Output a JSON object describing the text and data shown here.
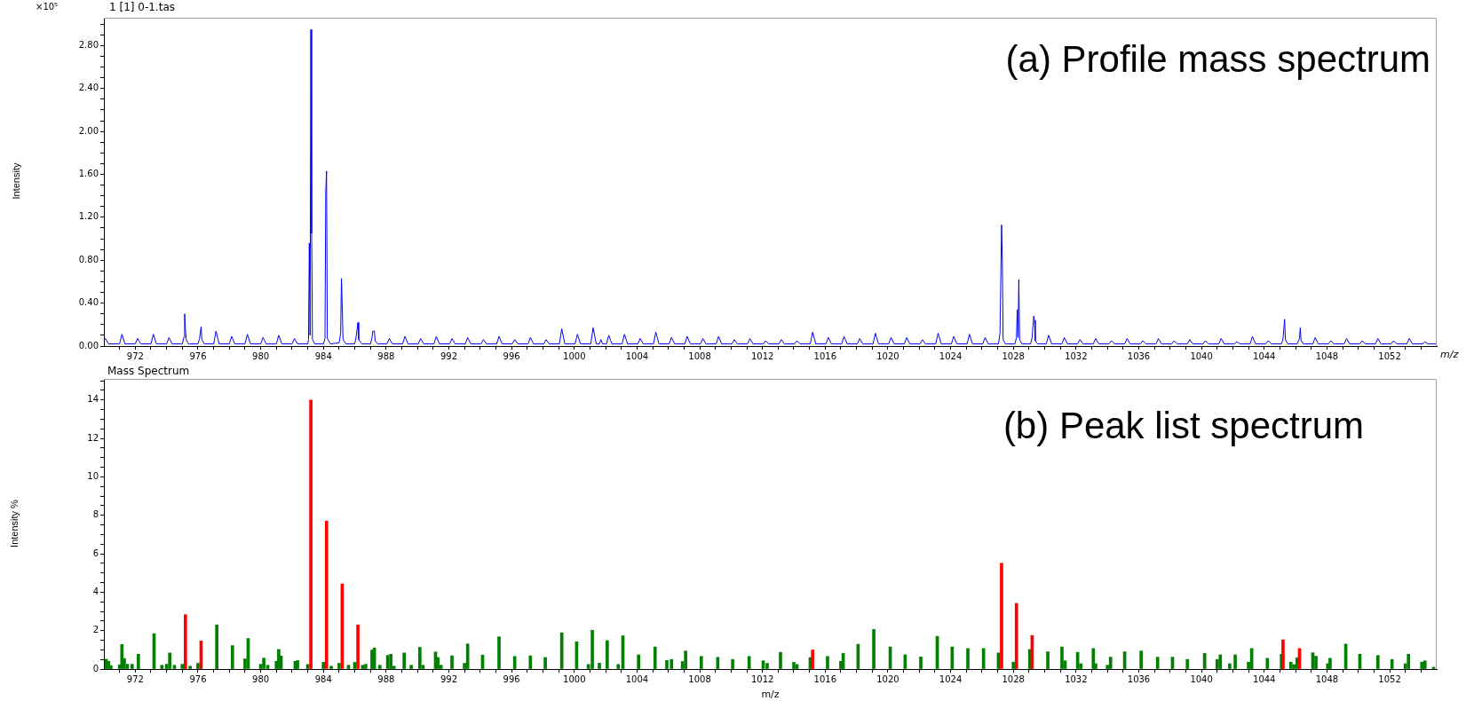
{
  "chart_data": [
    {
      "type": "line",
      "title": "(a) Profile mass spectrum",
      "subtitle": "1 [1] 0-1.tas",
      "xlabel": "m/z",
      "ylabel": "Intensity",
      "annotations": [
        "×10⁵"
      ],
      "marker": "none",
      "series": [
        {
          "color": "#0000ff",
          "x": [
            970.0,
            970.1,
            970.3,
            971.0,
            971.15,
            971.35,
            972.0,
            972.15,
            972.35,
            973.0,
            973.15,
            973.35,
            974.0,
            974.15,
            974.35,
            975.0,
            975.1,
            975.15,
            975.2,
            975.25,
            975.4,
            976.0,
            976.1,
            976.2,
            976.25,
            976.4,
            977.0,
            977.15,
            977.35,
            978.0,
            978.15,
            978.35,
            979.0,
            979.15,
            979.35,
            980.0,
            980.15,
            980.35,
            981.0,
            981.15,
            981.35,
            982.0,
            982.15,
            982.35,
            983.0,
            983.05,
            983.1,
            983.15,
            983.2,
            983.25,
            983.3,
            983.45,
            984.0,
            984.1,
            984.15,
            984.2,
            984.25,
            984.45,
            985.0,
            985.1,
            985.15,
            985.2,
            985.25,
            985.45,
            986.0,
            986.1,
            986.15,
            986.2,
            986.25,
            986.45,
            987.0,
            987.1,
            987.15,
            987.25,
            987.3,
            987.45,
            988.05,
            988.2,
            988.4,
            989.05,
            989.2,
            989.4,
            990.05,
            990.2,
            990.4,
            991.05,
            991.2,
            991.4,
            992.05,
            992.2,
            992.4,
            993.05,
            993.2,
            993.4,
            994.05,
            994.2,
            994.4,
            995.05,
            995.2,
            995.4,
            996.05,
            996.2,
            996.4,
            997.05,
            997.2,
            997.4,
            998.05,
            998.2,
            998.4,
            999.05,
            999.2,
            999.4,
            1000.05,
            1000.2,
            1000.4,
            1001.05,
            1001.2,
            1001.4,
            1001.6,
            1001.7,
            1001.8,
            1002.05,
            1002.2,
            1002.4,
            1003.05,
            1003.2,
            1003.4,
            1004.05,
            1004.2,
            1004.4,
            1005.05,
            1005.2,
            1005.4,
            1006.05,
            1006.2,
            1006.4,
            1007.05,
            1007.2,
            1007.4,
            1008.05,
            1008.2,
            1008.4,
            1009.05,
            1009.2,
            1009.4,
            1010.05,
            1010.2,
            1010.4,
            1011.05,
            1011.2,
            1011.4,
            1012.05,
            1012.2,
            1012.4,
            1013.05,
            1013.2,
            1013.4,
            1014.05,
            1014.2,
            1014.4,
            1015.05,
            1015.2,
            1015.4,
            1016.05,
            1016.2,
            1016.4,
            1017.05,
            1017.2,
            1017.4,
            1018.05,
            1018.2,
            1018.4,
            1019.05,
            1019.2,
            1019.4,
            1020.05,
            1020.2,
            1020.4,
            1021.05,
            1021.2,
            1021.4,
            1022.05,
            1022.2,
            1022.4,
            1023.05,
            1023.2,
            1023.4,
            1024.05,
            1024.2,
            1024.4,
            1025.05,
            1025.2,
            1025.4,
            1026.05,
            1026.2,
            1026.4,
            1027.05,
            1027.15,
            1027.25,
            1027.3,
            1027.35,
            1027.5,
            1028.1,
            1028.2,
            1028.25,
            1028.3,
            1028.35,
            1028.4,
            1028.55,
            1029.1,
            1029.2,
            1029.3,
            1029.35,
            1029.4,
            1029.55,
            1030.1,
            1030.25,
            1030.45,
            1031.1,
            1031.25,
            1031.45,
            1032.1,
            1032.25,
            1032.45,
            1033.1,
            1033.25,
            1033.45,
            1034.1,
            1034.25,
            1034.45,
            1035.1,
            1035.25,
            1035.45,
            1036.1,
            1036.25,
            1036.45,
            1037.1,
            1037.25,
            1037.45,
            1038.1,
            1038.25,
            1038.45,
            1039.1,
            1039.25,
            1039.45,
            1040.1,
            1040.25,
            1040.45,
            1041.1,
            1041.25,
            1041.45,
            1042.1,
            1042.25,
            1042.45,
            1043.1,
            1043.25,
            1043.45,
            1044.1,
            1044.25,
            1044.45,
            1045.1,
            1045.2,
            1045.3,
            1045.35,
            1045.5,
            1046.1,
            1046.25,
            1046.3,
            1046.35,
            1046.5,
            1047.1,
            1047.25,
            1047.45,
            1048.1,
            1048.25,
            1048.45,
            1049.1,
            1049.25,
            1049.45,
            1050.1,
            1050.25,
            1050.45,
            1051.1,
            1051.25,
            1051.45,
            1052.1,
            1052.25,
            1052.45,
            1053.1,
            1053.25,
            1053.45,
            1054.1,
            1054.25,
            1054.45,
            1055.0
          ],
          "values": [
            0.05,
            0.07,
            0.02,
            0.02,
            0.11,
            0.02,
            0.02,
            0.07,
            0.02,
            0.02,
            0.11,
            0.02,
            0.02,
            0.08,
            0.02,
            0.02,
            0.08,
            0.3,
            0.15,
            0.06,
            0.02,
            0.02,
            0.07,
            0.18,
            0.06,
            0.02,
            0.02,
            0.14,
            0.02,
            0.02,
            0.09,
            0.02,
            0.02,
            0.11,
            0.02,
            0.02,
            0.08,
            0.02,
            0.02,
            0.1,
            0.02,
            0.02,
            0.07,
            0.02,
            0.02,
            0.06,
            0.96,
            0.1,
            2.95,
            1.05,
            0.06,
            0.02,
            0.02,
            0.07,
            1.43,
            1.63,
            0.07,
            0.02,
            0.03,
            0.12,
            0.63,
            0.38,
            0.06,
            0.02,
            0.02,
            0.1,
            0.16,
            0.22,
            0.06,
            0.02,
            0.02,
            0.08,
            0.14,
            0.14,
            0.05,
            0.02,
            0.02,
            0.07,
            0.02,
            0.02,
            0.09,
            0.02,
            0.02,
            0.07,
            0.02,
            0.02,
            0.09,
            0.02,
            0.02,
            0.07,
            0.02,
            0.02,
            0.08,
            0.02,
            0.02,
            0.06,
            0.02,
            0.02,
            0.09,
            0.02,
            0.02,
            0.06,
            0.02,
            0.02,
            0.08,
            0.02,
            0.02,
            0.06,
            0.02,
            0.02,
            0.16,
            0.02,
            0.02,
            0.11,
            0.02,
            0.02,
            0.17,
            0.02,
            0.02,
            0.06,
            0.02,
            0.02,
            0.1,
            0.02,
            0.02,
            0.11,
            0.02,
            0.02,
            0.07,
            0.02,
            0.02,
            0.13,
            0.02,
            0.02,
            0.08,
            0.02,
            0.02,
            0.09,
            0.02,
            0.02,
            0.07,
            0.02,
            0.02,
            0.09,
            0.02,
            0.02,
            0.06,
            0.02,
            0.02,
            0.07,
            0.02,
            0.02,
            0.05,
            0.02,
            0.02,
            0.06,
            0.02,
            0.02,
            0.05,
            0.02,
            0.02,
            0.13,
            0.02,
            0.02,
            0.08,
            0.02,
            0.02,
            0.09,
            0.02,
            0.02,
            0.07,
            0.02,
            0.02,
            0.12,
            0.02,
            0.02,
            0.08,
            0.02,
            0.02,
            0.08,
            0.02,
            0.02,
            0.06,
            0.02,
            0.02,
            0.12,
            0.02,
            0.02,
            0.09,
            0.02,
            0.02,
            0.11,
            0.02,
            0.02,
            0.08,
            0.02,
            0.02,
            0.12,
            1.13,
            0.79,
            0.06,
            0.02,
            0.02,
            0.08,
            0.34,
            0.08,
            0.62,
            0.06,
            0.02,
            0.02,
            0.08,
            0.28,
            0.24,
            0.05,
            0.02,
            0.02,
            0.1,
            0.02,
            0.02,
            0.08,
            0.02,
            0.02,
            0.06,
            0.02,
            0.02,
            0.07,
            0.02,
            0.02,
            0.05,
            0.02,
            0.02,
            0.07,
            0.02,
            0.02,
            0.05,
            0.02,
            0.02,
            0.07,
            0.02,
            0.02,
            0.05,
            0.02,
            0.02,
            0.06,
            0.02,
            0.02,
            0.05,
            0.02,
            0.02,
            0.07,
            0.02,
            0.02,
            0.04,
            0.02,
            0.02,
            0.09,
            0.02,
            0.02,
            0.05,
            0.02,
            0.02,
            0.07,
            0.25,
            0.06,
            0.02,
            0.02,
            0.07,
            0.17,
            0.05,
            0.02,
            0.02,
            0.08,
            0.02,
            0.02,
            0.05,
            0.02,
            0.02,
            0.07,
            0.02,
            0.02,
            0.05,
            0.02,
            0.02,
            0.07,
            0.02,
            0.02,
            0.05,
            0.02,
            0.02,
            0.07,
            0.02,
            0.02,
            0.04,
            0.02,
            0.02
          ]
        }
      ],
      "xlim": [
        970,
        1055
      ],
      "xticks": [
        {
          "value": 971,
          "label": null
        },
        972,
        {
          "value": 973,
          "label": null
        },
        {
          "value": 974,
          "label": null
        },
        {
          "value": 975,
          "label": null
        },
        976,
        {
          "value": 977,
          "label": null
        },
        {
          "value": 978,
          "label": null
        },
        {
          "value": 979,
          "label": null
        },
        980,
        {
          "value": 981,
          "label": null
        },
        {
          "value": 982,
          "label": null
        },
        {
          "value": 983,
          "label": null
        },
        984,
        {
          "value": 985,
          "label": null
        },
        {
          "value": 986,
          "label": null
        },
        {
          "value": 987,
          "label": null
        },
        988,
        {
          "value": 989,
          "label": null
        },
        {
          "value": 990,
          "label": null
        },
        {
          "value": 991,
          "label": null
        },
        992,
        {
          "value": 993,
          "label": null
        },
        {
          "value": 994,
          "label": null
        },
        {
          "value": 995,
          "label": null
        },
        996,
        {
          "value": 997,
          "label": null
        },
        {
          "value": 998,
          "label": null
        },
        {
          "value": 999,
          "label": null
        },
        1000,
        {
          "value": 1001,
          "label": null
        },
        {
          "value": 1002,
          "label": null
        },
        {
          "value": 1003,
          "label": null
        },
        1004,
        {
          "value": 1005,
          "label": null
        },
        {
          "value": 1006,
          "label": null
        },
        {
          "value": 1007,
          "label": null
        },
        1008,
        {
          "value": 1009,
          "label": null
        },
        {
          "value": 1010,
          "label": null
        },
        {
          "value": 1011,
          "label": null
        },
        1012,
        {
          "value": 1013,
          "label": null
        },
        {
          "value": 1014,
          "label": null
        },
        {
          "value": 1015,
          "label": null
        },
        1016,
        {
          "value": 1017,
          "label": null
        },
        {
          "value": 1018,
          "label": null
        },
        {
          "value": 1019,
          "label": null
        },
        1020,
        {
          "value": 1021,
          "label": null
        },
        {
          "value": 1022,
          "label": null
        },
        {
          "value": 1023,
          "label": null
        },
        1024,
        {
          "value": 1025,
          "label": null
        },
        {
          "value": 1026,
          "label": null
        },
        {
          "value": 1027,
          "label": null
        },
        1028,
        {
          "value": 1029,
          "label": null
        },
        {
          "value": 1030,
          "label": null
        },
        {
          "value": 1031,
          "label": null
        },
        1032,
        {
          "value": 1033,
          "label": null
        },
        {
          "value": 1034,
          "label": null
        },
        {
          "value": 1035,
          "label": null
        },
        1036,
        {
          "value": 1037,
          "label": null
        },
        {
          "value": 1038,
          "label": null
        },
        {
          "value": 1039,
          "label": null
        },
        1040,
        {
          "value": 1041,
          "label": null
        },
        {
          "value": 1042,
          "label": null
        },
        {
          "value": 1043,
          "label": null
        },
        1044,
        {
          "value": 1045,
          "label": null
        },
        {
          "value": 1046,
          "label": null
        },
        {
          "value": 1047,
          "label": null
        },
        1048,
        {
          "value": 1049,
          "label": null
        },
        {
          "value": 1050,
          "label": null
        },
        {
          "value": 1051,
          "label": null
        },
        1052,
        {
          "value": 1053,
          "label": null
        },
        {
          "value": 1054,
          "label": null
        }
      ],
      "ylim": [
        0,
        3.06
      ],
      "yticks": [
        {
          "value": 0,
          "label": "0.00"
        },
        {
          "value": 0.1,
          "label": null
        },
        {
          "value": 0.2,
          "label": null
        },
        {
          "value": 0.3,
          "label": null
        },
        {
          "value": 0.4,
          "label": "0.40"
        },
        {
          "value": 0.5,
          "label": null
        },
        {
          "value": 0.6,
          "label": null
        },
        {
          "value": 0.7,
          "label": null
        },
        {
          "value": 0.8,
          "label": "0.80"
        },
        {
          "value": 0.9,
          "label": null
        },
        {
          "value": 1.0,
          "label": null
        },
        {
          "value": 1.1,
          "label": null
        },
        {
          "value": 1.2,
          "label": "1.20"
        },
        {
          "value": 1.3,
          "label": null
        },
        {
          "value": 1.4,
          "label": null
        },
        {
          "value": 1.5,
          "label": null
        },
        {
          "value": 1.6,
          "label": "1.60"
        },
        {
          "value": 1.7,
          "label": null
        },
        {
          "value": 1.8,
          "label": null
        },
        {
          "value": 1.9,
          "label": null
        },
        {
          "value": 2.0,
          "label": "2.00"
        },
        {
          "value": 2.1,
          "label": null
        },
        {
          "value": 2.2,
          "label": null
        },
        {
          "value": 2.3,
          "label": null
        },
        {
          "value": 2.4,
          "label": "2.40"
        },
        {
          "value": 2.5,
          "label": null
        },
        {
          "value": 2.6,
          "label": null
        },
        {
          "value": 2.7,
          "label": null
        },
        {
          "value": 2.8,
          "label": "2.80"
        },
        {
          "value": 2.9,
          "label": null
        },
        {
          "value": 3.0,
          "label": null
        }
      ]
    },
    {
      "type": "bar",
      "title": "(b) Peak list spectrum",
      "subtitle": "Mass Spectrum",
      "xlabel": "m/z",
      "ylabel": "Intensity %",
      "series": [
        {
          "color": "#ff0000",
          "x": [
            975.2,
            976.2,
            983.2,
            984.2,
            985.2,
            986.2,
            1015.2,
            1027.25,
            1028.2,
            1029.2,
            1045.2,
            1046.25
          ],
          "values": [
            2.83,
            1.46,
            14,
            7.7,
            4.43,
            2.3,
            0.99,
            5.51,
            3.42,
            1.75,
            1.52,
            1.07
          ]
        },
        {
          "color": "#008000",
          "x": [
            970.15,
            970.3,
            970.45,
            971.0,
            971.15,
            971.3,
            971.5,
            971.8,
            972.2,
            973.2,
            973.7,
            974.0,
            974.2,
            974.5,
            975.0,
            975.5,
            976.0,
            977.2,
            978.2,
            979.0,
            979.2,
            980.0,
            980.2,
            980.45,
            981.0,
            981.15,
            981.3,
            982.2,
            982.35,
            983.0,
            984.0,
            984.5,
            985.0,
            985.6,
            986.0,
            986.5,
            986.7,
            987.1,
            987.25,
            987.6,
            988.1,
            988.3,
            988.5,
            989.15,
            989.6,
            990.15,
            990.35,
            991.15,
            991.3,
            991.5,
            992.2,
            993.0,
            993.2,
            994.15,
            995.2,
            996.2,
            997.2,
            998.15,
            999.2,
            1000.15,
            1000.9,
            1001.15,
            1001.6,
            1002.1,
            1002.8,
            1003.1,
            1004.1,
            1005.15,
            1005.9,
            1006.2,
            1006.9,
            1007.1,
            1008.1,
            1009.15,
            1010.1,
            1011.15,
            1012.05,
            1012.3,
            1013.15,
            1014.0,
            1014.2,
            1015.05,
            1016.15,
            1017.0,
            1017.15,
            1018.1,
            1019.1,
            1020.15,
            1021.1,
            1022.1,
            1023.15,
            1024.1,
            1025.1,
            1026.1,
            1027.05,
            1028.0,
            1029.05,
            1030.2,
            1031.1,
            1031.3,
            1032.1,
            1032.3,
            1033.1,
            1033.25,
            1034.0,
            1034.2,
            1035.1,
            1036.15,
            1037.2,
            1038.15,
            1039.1,
            1040.2,
            1041.0,
            1041.2,
            1041.8,
            1042.15,
            1043.0,
            1043.2,
            1044.2,
            1045.1,
            1045.7,
            1045.9,
            1046.1,
            1047.1,
            1047.3,
            1048.05,
            1048.2,
            1049.2,
            1050.1,
            1051.25,
            1052.15,
            1053.0,
            1053.2,
            1054.05,
            1054.25,
            1054.8
          ],
          "values": [
            0.51,
            0.4,
            0.18,
            0.22,
            1.28,
            0.55,
            0.25,
            0.25,
            0.77,
            1.84,
            0.2,
            0.25,
            0.84,
            0.2,
            0.25,
            0.15,
            0.3,
            2.3,
            1.22,
            0.53,
            1.59,
            0.25,
            0.57,
            0.2,
            0.4,
            1.02,
            0.68,
            0.4,
            0.44,
            0.24,
            0.35,
            0.15,
            0.3,
            0.2,
            0.35,
            0.2,
            0.25,
            0.99,
            1.1,
            0.2,
            0.71,
            0.77,
            0.15,
            0.84,
            0.2,
            1.13,
            0.2,
            0.89,
            0.6,
            0.2,
            0.69,
            0.3,
            1.31,
            0.73,
            1.68,
            0.66,
            0.69,
            0.6,
            1.89,
            1.42,
            0.24,
            2.02,
            0.31,
            1.48,
            0.24,
            1.73,
            0.74,
            1.15,
            0.45,
            0.5,
            0.39,
            0.94,
            0.66,
            0.61,
            0.5,
            0.66,
            0.43,
            0.3,
            0.87,
            0.35,
            0.24,
            0.6,
            0.66,
            0.4,
            0.82,
            1.29,
            2.06,
            1.15,
            0.74,
            0.63,
            1.7,
            1.15,
            1.07,
            1.07,
            0.84,
            0.36,
            1.02,
            0.9,
            1.15,
            0.43,
            0.87,
            0.28,
            1.07,
            0.28,
            0.2,
            0.62,
            0.9,
            0.94,
            0.62,
            0.62,
            0.5,
            0.82,
            0.5,
            0.74,
            0.28,
            0.74,
            0.36,
            1.07,
            0.56,
            0.77,
            0.36,
            0.23,
            0.59,
            0.85,
            0.67,
            0.28,
            0.56,
            1.3,
            0.77,
            0.71,
            0.5,
            0.28,
            0.77,
            0.36,
            0.43,
            0.1
          ]
        }
      ],
      "xlim": [
        970,
        1055
      ],
      "xticks": [
        {
          "value": 971,
          "label": null
        },
        972,
        {
          "value": 973,
          "label": null
        },
        {
          "value": 974,
          "label": null
        },
        {
          "value": 975,
          "label": null
        },
        976,
        {
          "value": 977,
          "label": null
        },
        {
          "value": 978,
          "label": null
        },
        {
          "value": 979,
          "label": null
        },
        980,
        {
          "value": 981,
          "label": null
        },
        {
          "value": 982,
          "label": null
        },
        {
          "value": 983,
          "label": null
        },
        984,
        {
          "value": 985,
          "label": null
        },
        {
          "value": 986,
          "label": null
        },
        {
          "value": 987,
          "label": null
        },
        988,
        {
          "value": 989,
          "label": null
        },
        {
          "value": 990,
          "label": null
        },
        {
          "value": 991,
          "label": null
        },
        992,
        {
          "value": 993,
          "label": null
        },
        {
          "value": 994,
          "label": null
        },
        {
          "value": 995,
          "label": null
        },
        996,
        {
          "value": 997,
          "label": null
        },
        {
          "value": 998,
          "label": null
        },
        {
          "value": 999,
          "label": null
        },
        1000,
        {
          "value": 1001,
          "label": null
        },
        {
          "value": 1002,
          "label": null
        },
        {
          "value": 1003,
          "label": null
        },
        1004,
        {
          "value": 1005,
          "label": null
        },
        {
          "value": 1006,
          "label": null
        },
        {
          "value": 1007,
          "label": null
        },
        1008,
        {
          "value": 1009,
          "label": null
        },
        {
          "value": 1010,
          "label": null
        },
        {
          "value": 1011,
          "label": null
        },
        1012,
        {
          "value": 1013,
          "label": null
        },
        {
          "value": 1014,
          "label": null
        },
        {
          "value": 1015,
          "label": null
        },
        1016,
        {
          "value": 1017,
          "label": null
        },
        {
          "value": 1018,
          "label": null
        },
        {
          "value": 1019,
          "label": null
        },
        1020,
        {
          "value": 1021,
          "label": null
        },
        {
          "value": 1022,
          "label": null
        },
        {
          "value": 1023,
          "label": null
        },
        1024,
        {
          "value": 1025,
          "label": null
        },
        {
          "value": 1026,
          "label": null
        },
        {
          "value": 1027,
          "label": null
        },
        1028,
        {
          "value": 1029,
          "label": null
        },
        {
          "value": 1030,
          "label": null
        },
        {
          "value": 1031,
          "label": null
        },
        1032,
        {
          "value": 1033,
          "label": null
        },
        {
          "value": 1034,
          "label": null
        },
        {
          "value": 1035,
          "label": null
        },
        1036,
        {
          "value": 1037,
          "label": null
        },
        {
          "value": 1038,
          "label": null
        },
        {
          "value": 1039,
          "label": null
        },
        1040,
        {
          "value": 1041,
          "label": null
        },
        {
          "value": 1042,
          "label": null
        },
        {
          "value": 1043,
          "label": null
        },
        1044,
        {
          "value": 1045,
          "label": null
        },
        {
          "value": 1046,
          "label": null
        },
        {
          "value": 1047,
          "label": null
        },
        1048,
        {
          "value": 1049,
          "label": null
        },
        {
          "value": 1050,
          "label": null
        },
        {
          "value": 1051,
          "label": null
        },
        1052,
        {
          "value": 1053,
          "label": null
        },
        {
          "value": 1054,
          "label": null
        }
      ],
      "ylim": [
        0,
        15.1
      ],
      "yticks": [
        0,
        {
          "value": 0.5,
          "label": null
        },
        {
          "value": 1,
          "label": null
        },
        {
          "value": 1.5,
          "label": null
        },
        2,
        {
          "value": 2.5,
          "label": null
        },
        {
          "value": 3,
          "label": null
        },
        {
          "value": 3.5,
          "label": null
        },
        4,
        {
          "value": 4.5,
          "label": null
        },
        {
          "value": 5,
          "label": null
        },
        {
          "value": 5.5,
          "label": null
        },
        6,
        {
          "value": 6.5,
          "label": null
        },
        {
          "value": 7,
          "label": null
        },
        {
          "value": 7.5,
          "label": null
        },
        8,
        {
          "value": 8.5,
          "label": null
        },
        {
          "value": 9,
          "label": null
        },
        {
          "value": 9.5,
          "label": null
        },
        10,
        {
          "value": 10.5,
          "label": null
        },
        {
          "value": 11,
          "label": null
        },
        {
          "value": 11.5,
          "label": null
        },
        12,
        {
          "value": 12.5,
          "label": null
        },
        {
          "value": 13,
          "label": null
        },
        {
          "value": 13.5,
          "label": null
        },
        14,
        {
          "value": 14.5,
          "label": null
        },
        {
          "value": 15,
          "label": null
        }
      ]
    }
  ]
}
